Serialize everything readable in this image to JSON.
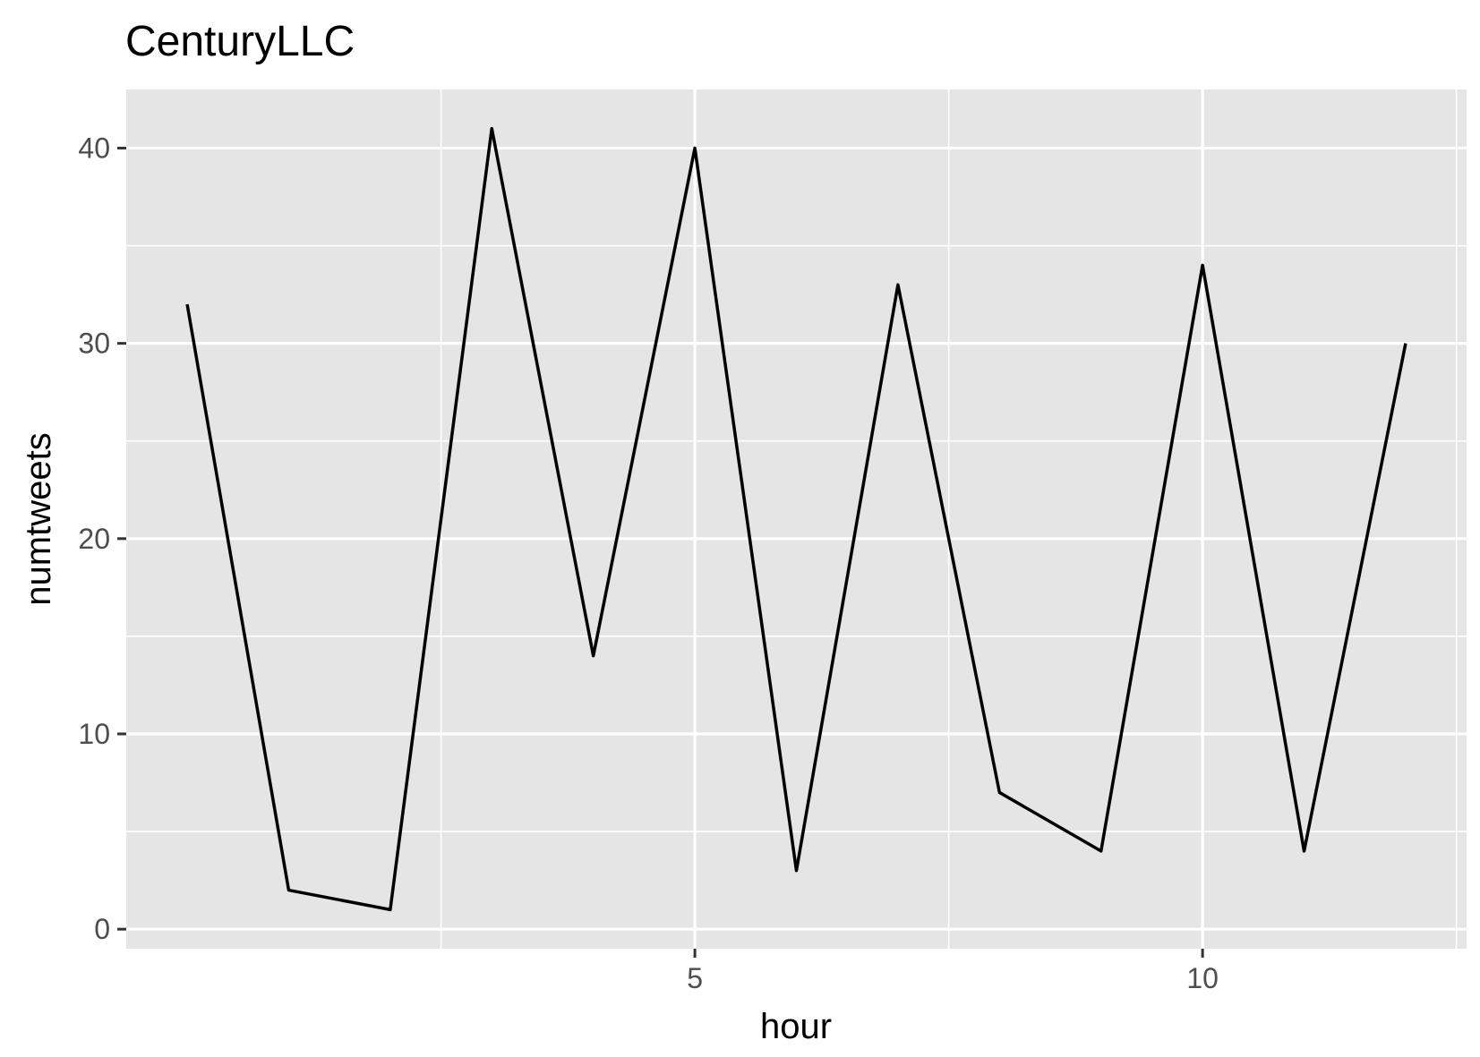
{
  "chart_data": {
    "type": "line",
    "title": "CenturyLLC",
    "xlabel": "hour",
    "ylabel": "numtweets",
    "x": [
      0,
      1,
      2,
      3,
      4,
      5,
      6,
      7,
      8,
      9,
      10,
      11,
      12
    ],
    "values": [
      32,
      2,
      1,
      41,
      14,
      40,
      3,
      33,
      7,
      4,
      34,
      4,
      30
    ],
    "xlim": [
      -0.6,
      12.6
    ],
    "ylim": [
      -1,
      43
    ],
    "x_ticks": [
      5,
      10
    ],
    "x_tick_labels": [
      "5",
      "10"
    ],
    "x_minor_ticks": [
      2.5,
      7.5,
      12.5
    ],
    "y_ticks": [
      0,
      10,
      20,
      30,
      40
    ],
    "y_tick_labels": [
      "0",
      "10",
      "20",
      "30",
      "40"
    ],
    "y_minor_ticks": [
      5,
      15,
      25,
      35
    ],
    "grid": true,
    "colors": {
      "panel": "#e5e5e5",
      "grid": "#ffffff",
      "line": "#000000",
      "tick": "#333333"
    }
  }
}
